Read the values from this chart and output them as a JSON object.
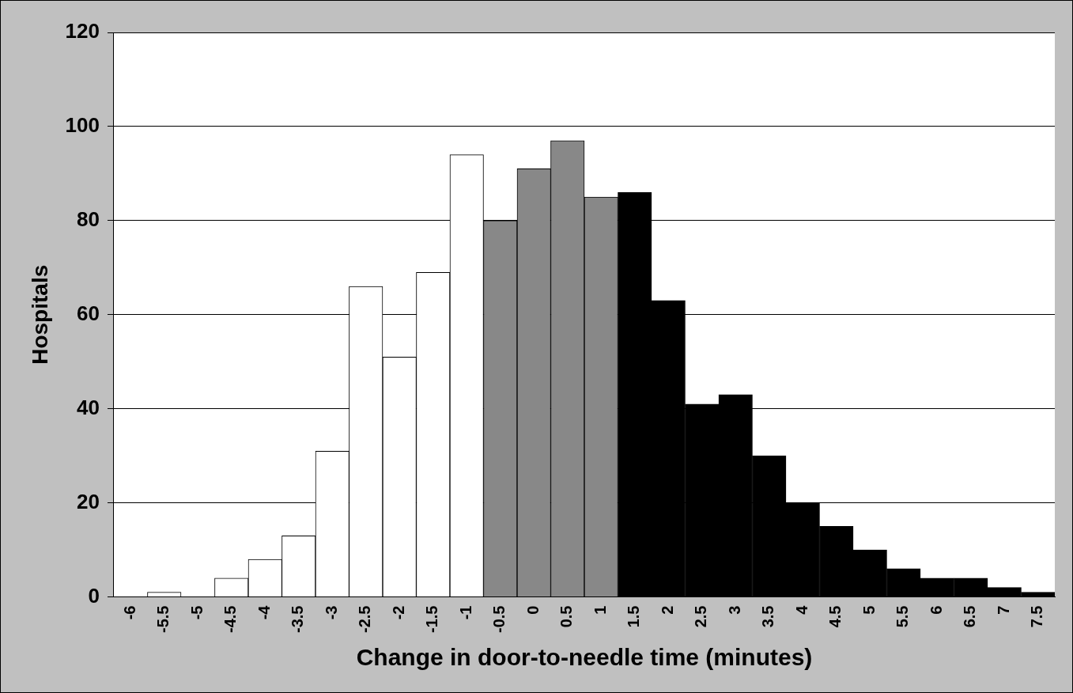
{
  "chart_data": {
    "type": "bar",
    "xlabel": "Change in door-to-needle time (minutes)",
    "ylabel": "Hospitals",
    "categories": [
      "-6",
      "-5.5",
      "-5",
      "-4.5",
      "-4",
      "-3.5",
      "-3",
      "-2.5",
      "-2",
      "-1.5",
      "-1",
      "-0.5",
      "0",
      "0.5",
      "1",
      "1.5",
      "2",
      "2.5",
      "3",
      "3.5",
      "4",
      "4.5",
      "5",
      "5.5",
      "6",
      "6.5",
      "7",
      "7.5"
    ],
    "values": [
      0,
      1,
      0,
      4,
      8,
      13,
      31,
      66,
      51,
      69,
      94,
      80,
      91,
      97,
      85,
      86,
      63,
      41,
      43,
      30,
      20,
      15,
      10,
      6,
      4,
      4,
      2,
      1
    ],
    "colors": [
      "#ffffff",
      "#ffffff",
      "#ffffff",
      "#ffffff",
      "#ffffff",
      "#ffffff",
      "#ffffff",
      "#ffffff",
      "#ffffff",
      "#ffffff",
      "#ffffff",
      "#888888",
      "#888888",
      "#888888",
      "#888888",
      "#000000",
      "#000000",
      "#000000",
      "#000000",
      "#000000",
      "#000000",
      "#000000",
      "#000000",
      "#000000",
      "#000000",
      "#000000",
      "#000000",
      "#000000"
    ],
    "ylim": [
      0,
      120
    ],
    "yticks": [
      0,
      20,
      40,
      60,
      80,
      100,
      120
    ],
    "grid": "y",
    "legend": false
  }
}
